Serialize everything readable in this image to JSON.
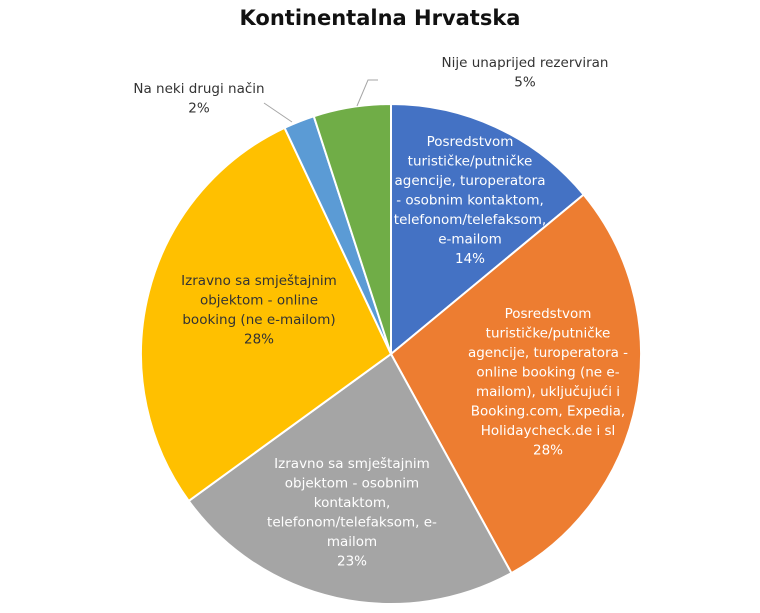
{
  "chart_data": {
    "type": "pie",
    "title": "Kontinentalna Hrvatska",
    "slices": [
      {
        "label": [
          "Posredstvom",
          "turističke/putničke",
          "agencije, turoperatora",
          "- osobnim kontaktom,",
          "telefonom/telefaksom,",
          "e-mailom"
        ],
        "value": 14,
        "value_label": "14%",
        "color": "#4472C4",
        "label_color": "#FFFFFF"
      },
      {
        "label": [
          "Posredstvom",
          "turističke/putničke",
          "agencije, turoperatora -",
          "online booking (ne e-",
          "mailom), uključujući i",
          "Booking.com, Expedia,",
          "Holidaycheck.de i sl"
        ],
        "value": 28,
        "value_label": "28%",
        "color": "#ED7D31",
        "label_color": "#FFFFFF"
      },
      {
        "label": [
          "Izravno sa smještajnim",
          "objektom - osobnim",
          "kontaktom,",
          "telefonom/telefaksom, e-",
          "mailom"
        ],
        "value": 23,
        "value_label": "23%",
        "color": "#A5A5A5",
        "label_color": "#FFFFFF"
      },
      {
        "label": [
          "Izravno sa smještajnim",
          "objektom - online",
          "booking (ne e-mailom)"
        ],
        "value": 28,
        "value_label": "28%",
        "color": "#FFC000",
        "label_color": "#333333"
      },
      {
        "label": [
          "Na neki drugi način"
        ],
        "value": 2,
        "value_label": "2%",
        "color": "#5B9BD5",
        "label_color": "#333333"
      },
      {
        "label": [
          "Nije unaprijed rezerviran"
        ],
        "value": 5,
        "value_label": "5%",
        "color": "#70AD47",
        "label_color": "#333333"
      }
    ]
  }
}
